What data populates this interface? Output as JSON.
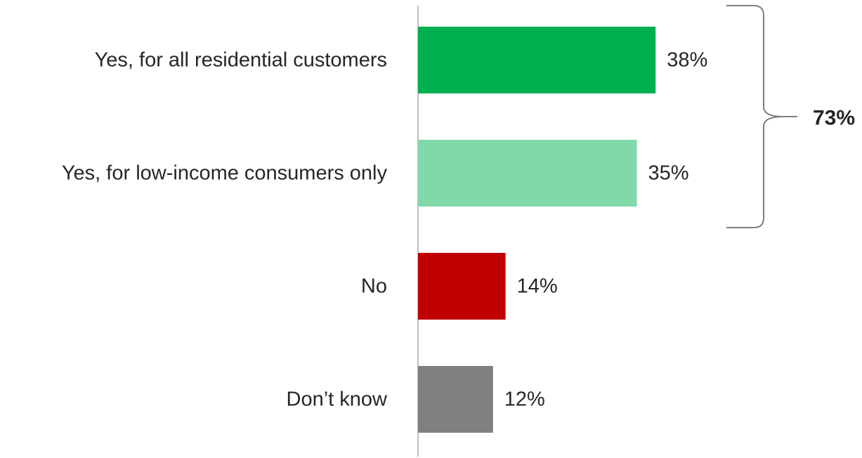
{
  "chart_data": {
    "type": "bar",
    "orientation": "horizontal",
    "categories": [
      "Yes, for all residential customers",
      "Yes, for low-income consumers only",
      "No",
      "Don’t know"
    ],
    "values": [
      38,
      35,
      14,
      12
    ],
    "value_labels": [
      "38%",
      "35%",
      "14%",
      "12%"
    ],
    "colors": [
      "#00b050",
      "#81d8a8",
      "#c00000",
      "#808080"
    ],
    "xlim": [
      0,
      100
    ],
    "grid": false,
    "legend": "none",
    "annotations": [
      {
        "type": "bracket",
        "spans": [
          0,
          1
        ],
        "label": "73%"
      }
    ]
  }
}
